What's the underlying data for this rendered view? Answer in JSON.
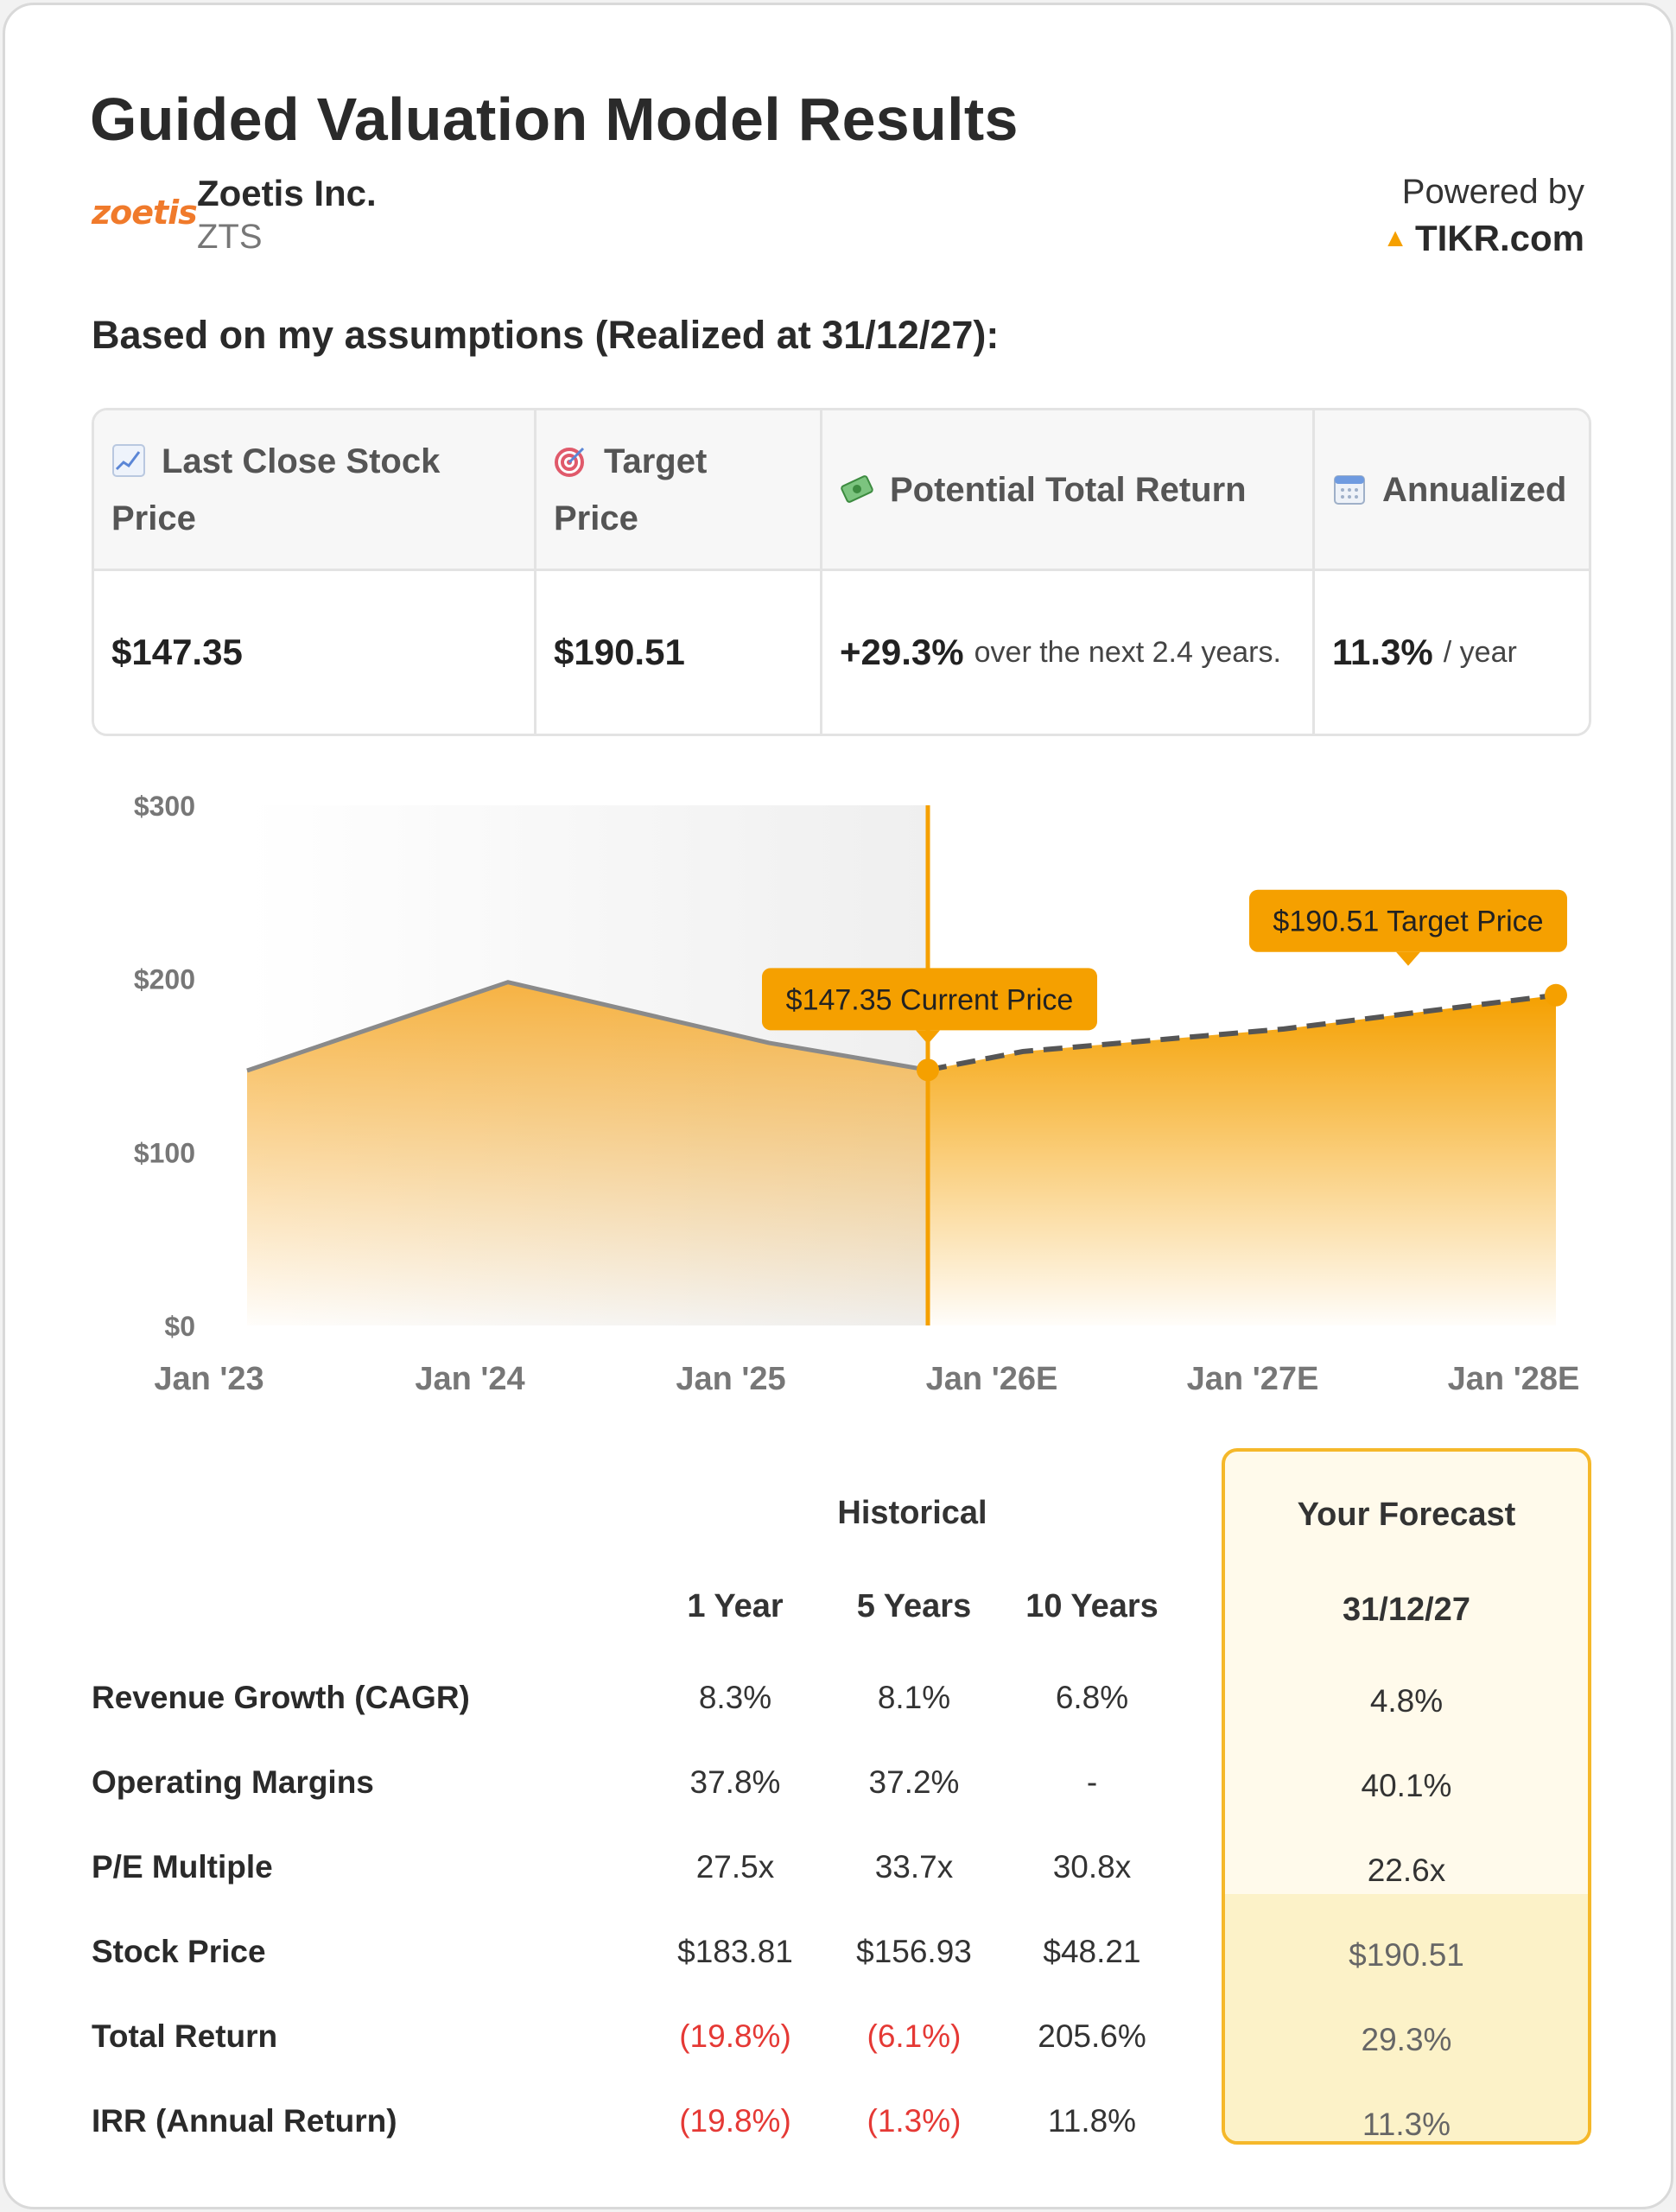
{
  "header": {
    "title": "Guided Valuation Model Results",
    "logo_text": "zoetis",
    "company": "Zoetis Inc.",
    "ticker": "ZTS",
    "powered_by": "Powered by",
    "tikr": "TIKR.com",
    "tikr_icon": "tikr-logo-icon"
  },
  "assumptions_label": "Based on my assumptions (Realized at 31/12/27):",
  "kpis": {
    "last_close_label": "Last Close Stock Price",
    "last_close_label_1": "Last Close Stock",
    "last_close_label_2": "Price",
    "target_label_1": "Target",
    "target_label_2": "Price",
    "return_label": "Potential Total Return",
    "annualized_label": "Annualized",
    "last_close_value": "$147.35",
    "target_value": "$190.51",
    "return_value": "+29.3%",
    "return_suffix": "over the next 2.4 years.",
    "annualized_value": "11.3%",
    "annualized_suffix": "/ year",
    "icons": [
      "chart-icon",
      "target-icon",
      "money-icon",
      "calendar-icon"
    ]
  },
  "chart_data": {
    "type": "area",
    "y_ticks": [
      "$300",
      "$200",
      "$100",
      "$0"
    ],
    "ylim": [
      0,
      300
    ],
    "x_ticks": [
      "Jan '23",
      "Jan '24",
      "Jan '25",
      "Jan '26E",
      "Jan '27E",
      "Jan '28E"
    ],
    "historical": [
      {
        "x": "Jan '23",
        "y": 147
      },
      {
        "x": "Jan '24",
        "y": 198
      },
      {
        "x": "Jan '25",
        "y": 163
      },
      {
        "x": "Current",
        "y": 147.35
      }
    ],
    "forecast": [
      {
        "x": "Current",
        "y": 147.35
      },
      {
        "x": "Jan '26E",
        "y": 158
      },
      {
        "x": "Jan '27E",
        "y": 171
      },
      {
        "x": "31/12/27",
        "y": 190.51
      }
    ],
    "current_callout": "$147.35 Current Price",
    "target_callout": "$190.51 Target Price",
    "colors": {
      "accent": "#f5a000",
      "line": "#8a8a8a",
      "dash": "#555555"
    }
  },
  "table": {
    "historical_header": "Historical",
    "forecast_header": "Your Forecast",
    "col_headers": [
      "1 Year",
      "5 Years",
      "10 Years"
    ],
    "forecast_col_header": "31/12/27",
    "rows": [
      {
        "label": "Revenue Growth (CAGR)",
        "values": [
          "8.3%",
          "8.1%",
          "6.8%"
        ],
        "forecast": "4.8%"
      },
      {
        "label": "Operating Margins",
        "values": [
          "37.8%",
          "37.2%",
          "-"
        ],
        "forecast": "40.1%"
      },
      {
        "label": "P/E Multiple",
        "values": [
          "27.5x",
          "33.7x",
          "30.8x"
        ],
        "forecast": "22.6x"
      },
      {
        "label": "Stock Price",
        "values": [
          "$183.81",
          "$156.93",
          "$48.21"
        ],
        "forecast": "$190.51"
      },
      {
        "label": "Total Return",
        "values": [
          "(19.8%)",
          "(6.1%)",
          "205.6%"
        ],
        "forecast": "29.3%"
      },
      {
        "label": "IRR (Annual Return)",
        "values": [
          "(19.8%)",
          "(1.3%)",
          "11.8%"
        ],
        "forecast": "11.3%"
      }
    ],
    "negative_color": "#e53935"
  }
}
